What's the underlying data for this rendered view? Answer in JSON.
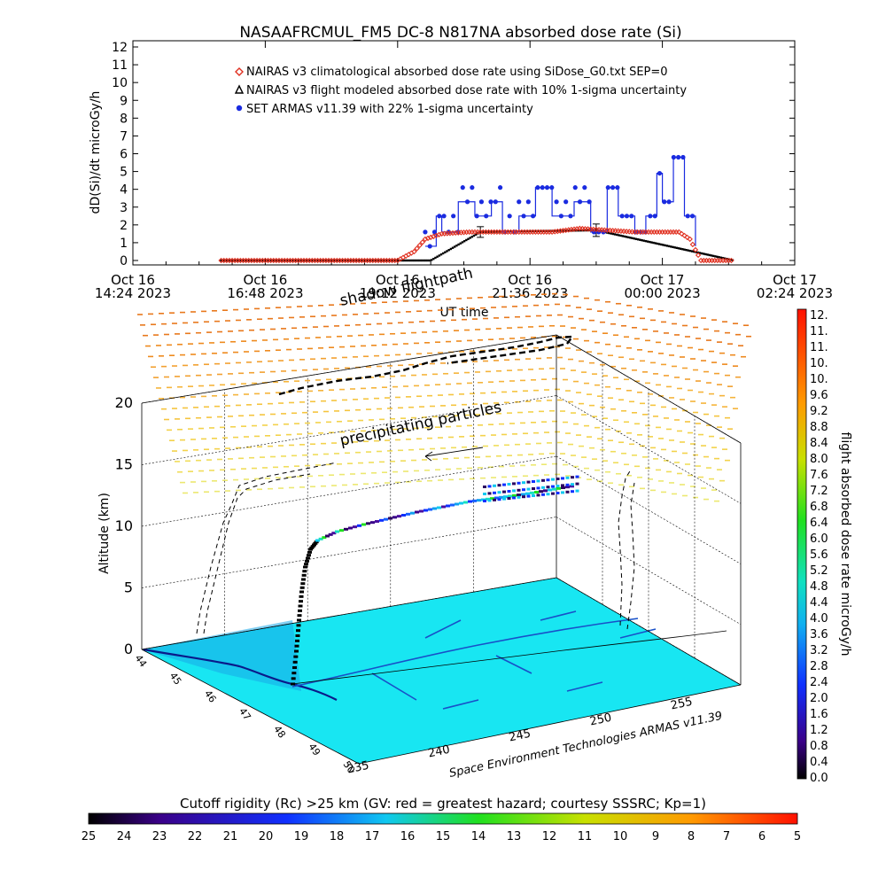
{
  "figure": {
    "title": "NASAAFRCMUL_FM5 DC-8   N817NA absorbed dose rate (Si)"
  },
  "chart_data": [
    {
      "type": "scatter",
      "title": "NASAAFRCMUL_FM5 DC-8   N817NA absorbed dose rate (Si)",
      "xlabel": "UT time",
      "ylabel": "dD(Si)/dt microGy/h",
      "x_ticks": [
        {
          "date": "Oct 16",
          "time": "14:24 2023"
        },
        {
          "date": "Oct 16",
          "time": "16:48 2023"
        },
        {
          "date": "Oct 16",
          "time": "19:12 2023"
        },
        {
          "date": "Oct 16",
          "time": "21:36 2023"
        },
        {
          "date": "Oct 17",
          "time": "00:00 2023"
        },
        {
          "date": "Oct 17",
          "time": "02:24 2023"
        }
      ],
      "xlim_hours": [
        14.4,
        26.4
      ],
      "ylim": [
        0,
        12
      ],
      "y_ticks": [
        "0",
        "1",
        "2",
        "3",
        "4",
        "5",
        "6",
        "7",
        "8",
        "9",
        "10",
        "11",
        "12"
      ],
      "legend": [
        {
          "label": "NAIRAS v3 climatological absorbed dose rate using SiDose_G0.txt SEP=0",
          "marker": "diamond",
          "color": "#e03020"
        },
        {
          "label": "NAIRAS v3 flight modeled absorbed dose rate with 10% 1-sigma uncertainty",
          "marker": "triangle",
          "color": "#000000"
        },
        {
          "label": "SET ARMAS v11.39 with 22% 1-sigma uncertainty",
          "marker": "circle",
          "color": "#1a2be0"
        }
      ],
      "series": [
        {
          "name": "NAIRAS v3 climatological absorbed dose rate using SiDose_G0.txt SEP=0",
          "x": [
            16.0,
            19.2,
            19.5,
            19.7,
            20.0,
            20.5,
            21.0,
            21.5,
            22.0,
            22.5,
            23.0,
            23.5,
            24.0,
            24.3,
            24.5,
            24.7,
            25.3
          ],
          "y": [
            0,
            0,
            0.5,
            1.2,
            1.5,
            1.6,
            1.6,
            1.6,
            1.6,
            1.8,
            1.7,
            1.6,
            1.6,
            1.6,
            1.2,
            0,
            0
          ]
        },
        {
          "name": "NAIRAS v3 flight modeled absorbed dose rate with 10% 1-sigma uncertainty",
          "x": [
            16.0,
            19.8,
            20.7,
            22.8,
            25.3
          ],
          "y": [
            0,
            0,
            1.6,
            1.7,
            0
          ]
        },
        {
          "name": "SET ARMAS v11.39 with 22% 1-sigma uncertainty",
          "x": [
            19.7,
            19.9,
            20.0,
            20.3,
            20.6,
            20.9,
            21.1,
            21.4,
            21.7,
            22.0,
            22.4,
            22.7,
            23.0,
            23.2,
            23.5,
            23.7,
            23.9,
            24.0,
            24.2,
            24.4,
            24.6
          ],
          "y": [
            0.8,
            2.5,
            1.6,
            3.3,
            2.5,
            3.3,
            1.6,
            2.5,
            4.1,
            2.5,
            3.3,
            1.6,
            4.1,
            2.5,
            1.6,
            2.5,
            4.9,
            3.3,
            5.8,
            2.5,
            0.8
          ]
        }
      ],
      "errorbars": [
        {
          "x": 20.7,
          "y": 1.6,
          "err": 0.3
        },
        {
          "x": 22.8,
          "y": 1.7,
          "err": 0.35
        }
      ]
    },
    {
      "type": "scatter",
      "subtype": "3d-flight-track",
      "zlabel": "Altitude (km)",
      "z_ticks": [
        "0",
        "5",
        "10",
        "15",
        "20"
      ],
      "lat_ticks": [
        "44",
        "45",
        "46",
        "47",
        "48",
        "49",
        "50"
      ],
      "lon_ticks": [
        "235",
        "240",
        "245",
        "250",
        "255"
      ],
      "annotations": [
        "shadow flightpath",
        "precipitating particles"
      ],
      "credit": "Space Environment Technologies ARMAS v11.39"
    }
  ],
  "colorbar_dose": {
    "label": "flight absorbed dose rate microGy/h",
    "ticks": [
      "12.",
      "11.",
      "11.",
      "10.",
      "10.",
      "9.6",
      "9.2",
      "8.8",
      "8.4",
      "8.0",
      "7.6",
      "7.2",
      "6.8",
      "6.4",
      "6.0",
      "5.6",
      "5.2",
      "4.8",
      "4.4",
      "4.0",
      "3.6",
      "3.2",
      "2.8",
      "2.4",
      "2.0",
      "1.6",
      "1.2",
      "0.8",
      "0.4",
      "0.0"
    ]
  },
  "colorbar_rigidity": {
    "label": "Cutoff rigidity (Rc) >25 km (GV: red = greatest hazard; courtesy SSSRC; Kp=1)",
    "ticks": [
      "25",
      "24",
      "23",
      "22",
      "21",
      "20",
      "19",
      "18",
      "17",
      "16",
      "15",
      "14",
      "13",
      "12",
      "11",
      "10",
      "9",
      "8",
      "7",
      "6",
      "5"
    ]
  },
  "colors": {
    "nairas_clim": "#e03020",
    "armas": "#1a2be0",
    "ground": "#18e6f2"
  }
}
